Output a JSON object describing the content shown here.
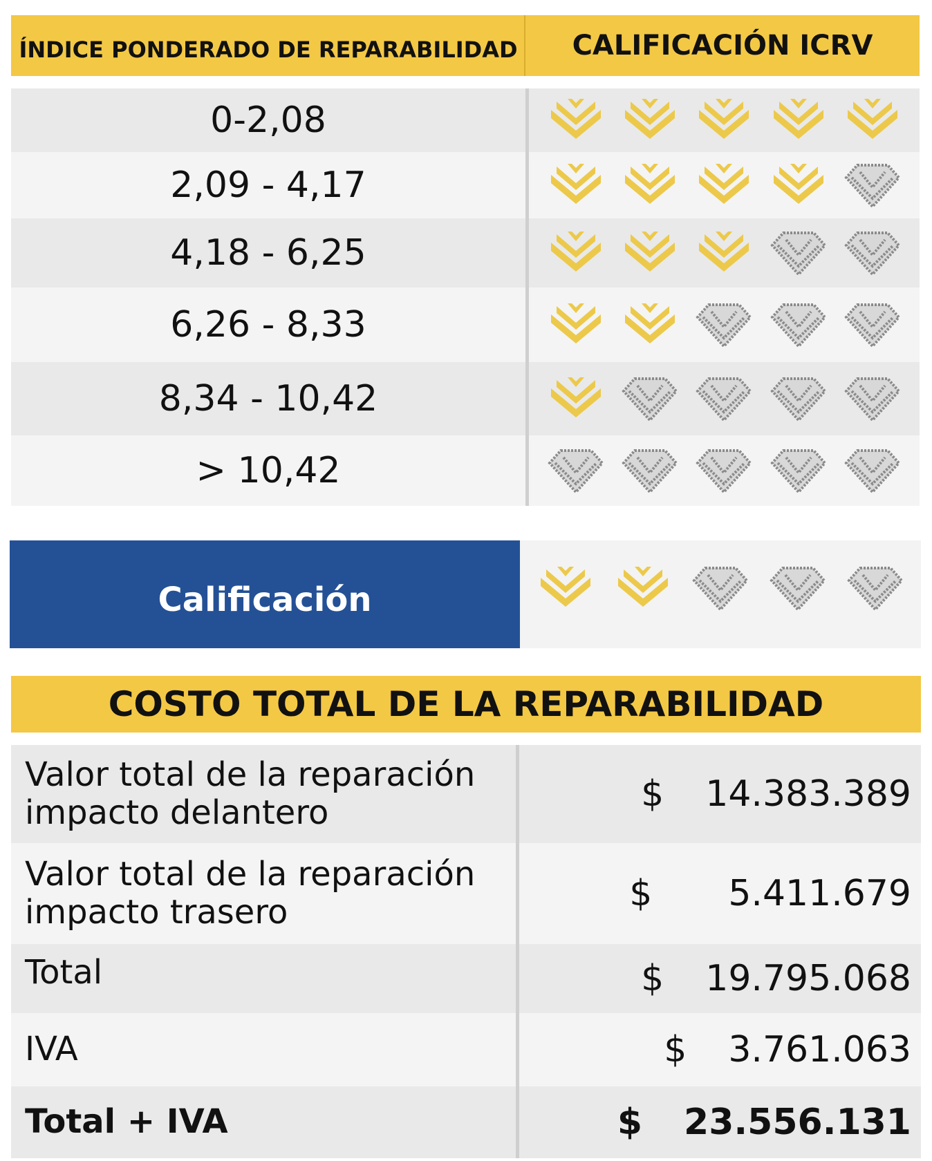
{
  "rating_table": {
    "header_left": "ÍNDICE PONDERADO DE REPARABILIDAD",
    "header_right": "CALIFICACIÓN ICRV",
    "rows": [
      {
        "range": "0-2,08",
        "gold": 5,
        "total": 5
      },
      {
        "range": "2,09 - 4,17",
        "gold": 4,
        "total": 5
      },
      {
        "range": "4,18 - 6,25",
        "gold": 3,
        "total": 5
      },
      {
        "range": "6,26 - 8,33",
        "gold": 2,
        "total": 5
      },
      {
        "range": "8,34 - 10,42",
        "gold": 1,
        "total": 5
      },
      {
        "range": "> 10,42",
        "gold": 0,
        "total": 5
      }
    ],
    "icon": "diamond-icon",
    "colors": {
      "gold": "#ecc94a",
      "gray": "#8a8a8a"
    }
  },
  "calificacion": {
    "label": "Calificación",
    "gold": 2,
    "total": 5
  },
  "cost": {
    "title": "COSTO TOTAL DE LA REPARABILIDAD",
    "rows": [
      {
        "label_line1": "Valor total de la reparación",
        "label_line2": "impacto delantero",
        "currency": "$",
        "value": "14.383.389"
      },
      {
        "label_line1": "Valor total de la reparación",
        "label_line2": "impacto trasero",
        "currency": "$",
        "value": "5.411.679"
      },
      {
        "label_line1": "Total",
        "label_line2": "",
        "currency": "$",
        "value": "19.795.068"
      },
      {
        "label_line1": "IVA",
        "label_line2": "",
        "currency": "$",
        "value": "3.761.063"
      },
      {
        "label_line1": "Total + IVA",
        "label_line2": "",
        "currency": "$",
        "value": "23.556.131"
      }
    ]
  },
  "colors": {
    "header_yellow": "#f3c845",
    "calif_blue": "#245196"
  }
}
